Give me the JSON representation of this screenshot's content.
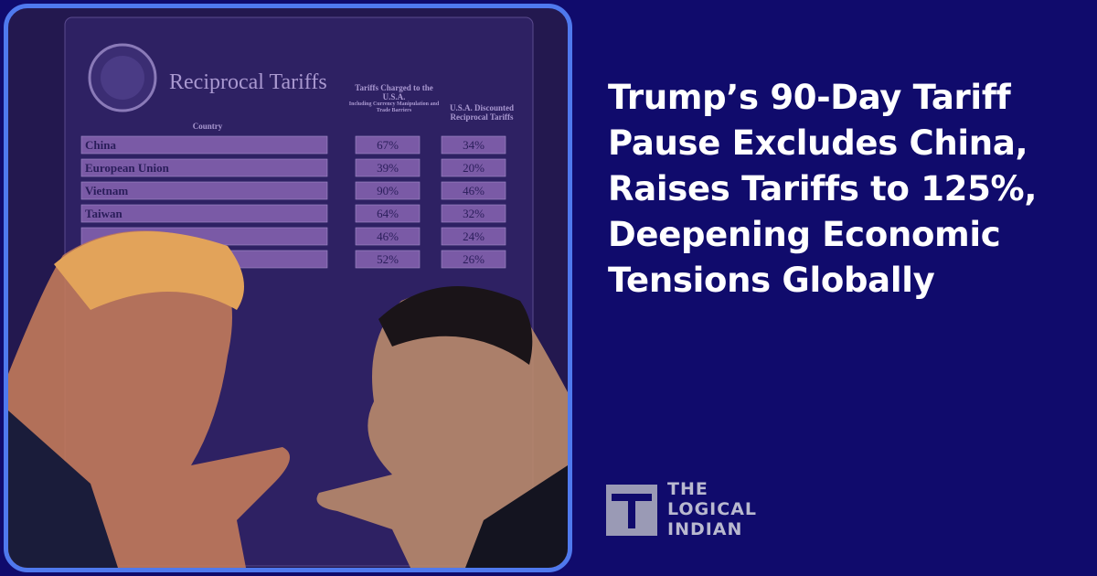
{
  "headline": {
    "lines": [
      "Trump’s 90-Day Tariff",
      "Pause Excludes China,",
      "Raises Tariffs to 125%,",
      "Deepening Economic",
      "Tensions Globally"
    ]
  },
  "brand": {
    "lines": [
      "THE",
      "LOGICAL",
      "INDIAN"
    ]
  },
  "table": {
    "title": "Reciprocal Tariffs",
    "columns": [
      "Country",
      "Tariffs Charged to the U.S.A.",
      "U.S.A. Discounted Reciprocal Tariffs"
    ],
    "column_note": "Including Currency Manipulation and Trade Barriers",
    "rows": [
      [
        "China",
        "67%",
        "34%"
      ],
      [
        "European Union",
        "39%",
        "20%"
      ],
      [
        "Vietnam",
        "90%",
        "46%"
      ],
      [
        "Taiwan",
        "64%",
        "32%"
      ],
      [
        null,
        "46%",
        "24%"
      ],
      [
        null,
        "52%",
        "26%"
      ]
    ]
  }
}
